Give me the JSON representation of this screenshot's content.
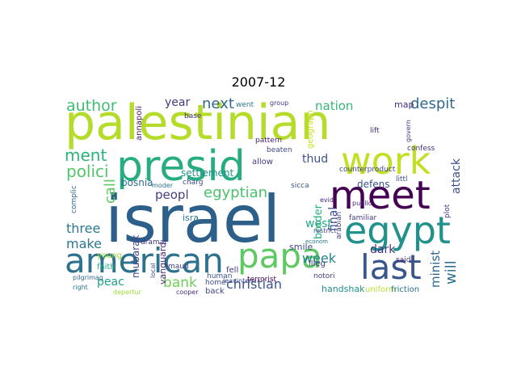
{
  "title": "2007-12",
  "words": [
    {
      "text": "palestinian",
      "color": "#b6dc2b"
    },
    {
      "text": "israel",
      "color": "#2c5f8a"
    },
    {
      "text": "presid",
      "color": "#27ad81"
    },
    {
      "text": "meet",
      "color": "#440154"
    },
    {
      "text": "work",
      "color": "#c2df23"
    },
    {
      "text": "american",
      "color": "#2c728e"
    },
    {
      "text": "egypt",
      "color": "#21918c"
    },
    {
      "text": "papa",
      "color": "#5ec962"
    },
    {
      "text": "last",
      "color": "#39568c"
    },
    {
      "text": "author",
      "color": "#3fbc73"
    },
    {
      "text": "polici",
      "color": "#52c569"
    },
    {
      "text": "ment",
      "color": "#2db27d"
    },
    {
      "text": "egyptian",
      "color": "#4ac16d"
    },
    {
      "text": "next",
      "color": "#31688e"
    },
    {
      "text": "nation",
      "color": "#35b779"
    },
    {
      "text": "despit",
      "color": "#30698e"
    },
    {
      "text": "attack",
      "color": "#3b528b"
    },
    {
      "text": "bank",
      "color": "#6ece58"
    },
    {
      "text": "christian",
      "color": "#3a548c"
    },
    {
      "text": "will",
      "color": "#2e6e8e"
    },
    {
      "text": "call",
      "color": "#5ec962"
    },
    {
      "text": "year",
      "color": "#443983"
    },
    {
      "text": "peopl",
      "color": "#433e85"
    },
    {
      "text": "three",
      "color": "#2a788e"
    },
    {
      "text": "make",
      "color": "#2a788e"
    },
    {
      "text": "peac",
      "color": "#1fa187"
    },
    {
      "text": "week",
      "color": "#26828e"
    },
    {
      "text": "final",
      "color": "#3e4989"
    },
    {
      "text": "border",
      "color": "#29af7f"
    },
    {
      "text": "minist",
      "color": "#31688e"
    },
    {
      "text": "bosnia",
      "color": "#2e6e8e"
    },
    {
      "text": "west",
      "color": "#22a884"
    },
    {
      "text": "dark",
      "color": "#46327e"
    },
    {
      "text": "defens",
      "color": "#3b528b"
    },
    {
      "text": "map",
      "color": "#472d7b"
    },
    {
      "text": "thud",
      "color": "#3b528b"
    },
    {
      "text": "mubarak",
      "color": "#414487"
    },
    {
      "text": "vanguard",
      "color": "#482878"
    },
    {
      "text": "annapoli",
      "color": "#481a6c"
    },
    {
      "text": "settlement",
      "color": "#21918c"
    },
    {
      "text": "isra",
      "color": "#2a788e"
    },
    {
      "text": "young",
      "color": "#a0da39"
    },
    {
      "text": "faith",
      "color": "#22a884"
    },
    {
      "text": "smile",
      "color": "#3e4989"
    },
    {
      "text": "handshak",
      "color": "#21918c"
    },
    {
      "text": "uniform",
      "color": "#b5de2b"
    },
    {
      "text": "friction",
      "color": "#2c728e"
    },
    {
      "text": "geograph",
      "color": "#c8e020"
    },
    {
      "text": "terrorist",
      "color": "#440154"
    },
    {
      "text": "human",
      "color": "#3b528b"
    },
    {
      "text": "back",
      "color": "#414487"
    },
    {
      "text": "fell",
      "color": "#443983"
    },
    {
      "text": "complic",
      "color": "#31688e"
    },
    {
      "text": "counterproduct",
      "color": "#414487"
    },
    {
      "text": "familiar",
      "color": "#433e85"
    },
    {
      "text": "public",
      "color": "#482878"
    },
    {
      "text": "said",
      "color": "#472d7b"
    },
    {
      "text": "littl",
      "color": "#3b528b"
    },
    {
      "text": "confess",
      "color": "#46327e"
    },
    {
      "text": "plot",
      "color": "#443983"
    },
    {
      "text": "pattern",
      "color": "#481a6c"
    },
    {
      "text": "beaten",
      "color": "#3e4989"
    },
    {
      "text": "allow",
      "color": "#443983"
    },
    {
      "text": "went",
      "color": "#2a788e"
    },
    {
      "text": "group",
      "color": "#443983"
    },
    {
      "text": "base",
      "color": "#472d7b"
    },
    {
      "text": "charg",
      "color": "#3e4989"
    },
    {
      "text": "moder",
      "color": "#2c728e"
    },
    {
      "text": "dramat",
      "color": "#443983"
    },
    {
      "text": "maud",
      "color": "#414487"
    },
    {
      "text": "home",
      "color": "#3b528b"
    },
    {
      "text": "leavintern",
      "color": "#3e4989"
    },
    {
      "text": "cooper",
      "color": "#472d7b"
    },
    {
      "text": "depertur",
      "color": "#a0da39"
    },
    {
      "text": "right",
      "color": "#2a788e"
    },
    {
      "text": "pilgrimag",
      "color": "#31688e"
    },
    {
      "text": "sicca",
      "color": "#3b528b"
    },
    {
      "text": "evid",
      "color": "#482878"
    },
    {
      "text": "notori",
      "color": "#443983"
    },
    {
      "text": "restrict",
      "color": "#3e4989"
    },
    {
      "text": "arabian",
      "color": "#414487"
    },
    {
      "text": "illeg",
      "color": "#433e85"
    },
    {
      "text": "econom",
      "color": "#2a788e"
    },
    {
      "text": "local",
      "color": "#3e4989"
    },
    {
      "text": "lift",
      "color": "#482878"
    },
    {
      "text": "govern",
      "color": "#443983"
    }
  ]
}
